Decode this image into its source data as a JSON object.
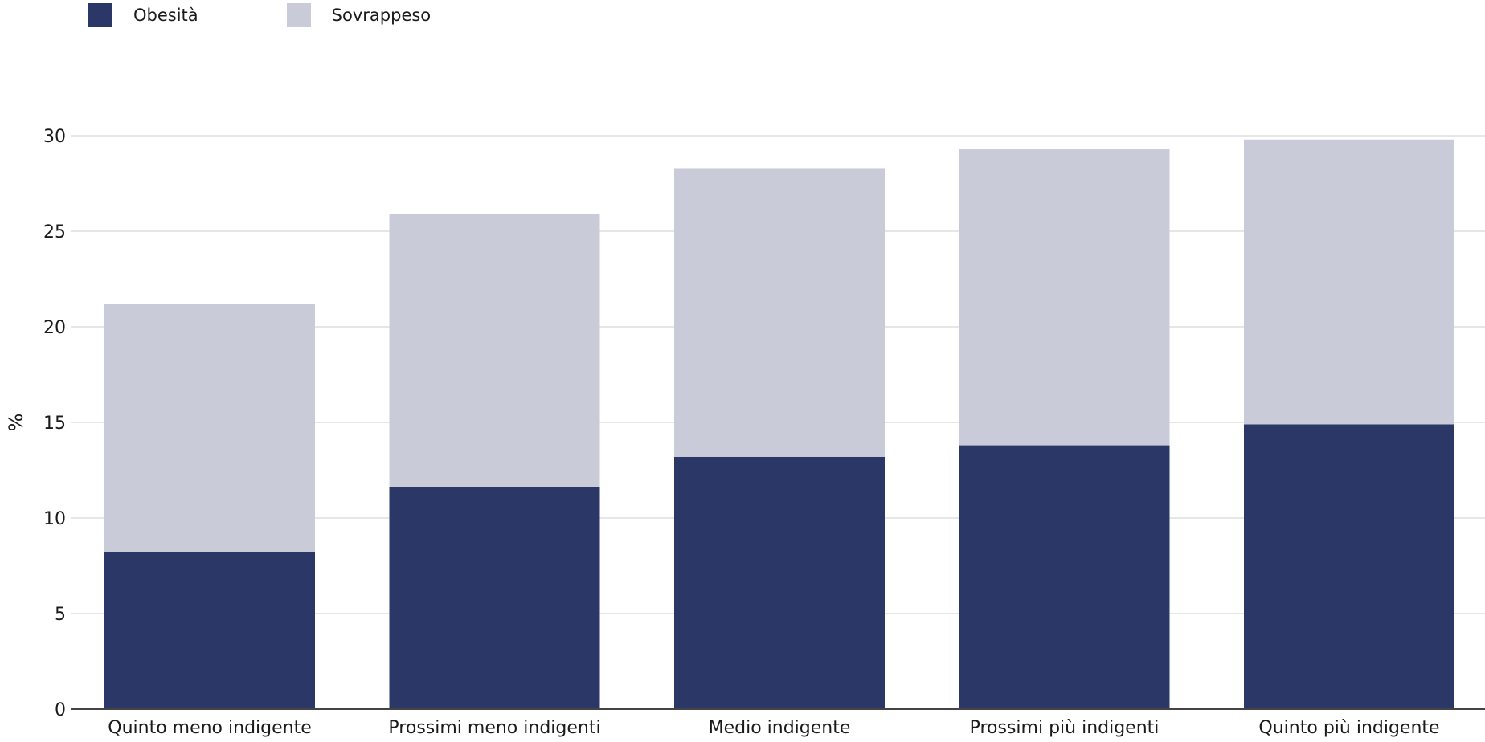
{
  "chart_data": {
    "type": "bar",
    "stacked": true,
    "categories": [
      "Quinto meno indigente",
      "Prossimi meno indigenti",
      "Medio indigente",
      "Prossimi più indigenti",
      "Quinto più indigente"
    ],
    "series": [
      {
        "name": "Obesità",
        "color": "#2b3766",
        "values": [
          8.2,
          11.6,
          13.2,
          13.8,
          14.9
        ]
      },
      {
        "name": "Sovrappeso",
        "color": "#c9ccd8",
        "values": [
          13.0,
          14.3,
          15.1,
          15.5,
          14.9
        ]
      }
    ],
    "ylabel": "%",
    "ylim": [
      0,
      30
    ],
    "yticks": [
      "0",
      "5",
      "10",
      "15",
      "20",
      "25",
      "30"
    ],
    "grid": true,
    "legend_position": "top-left"
  }
}
